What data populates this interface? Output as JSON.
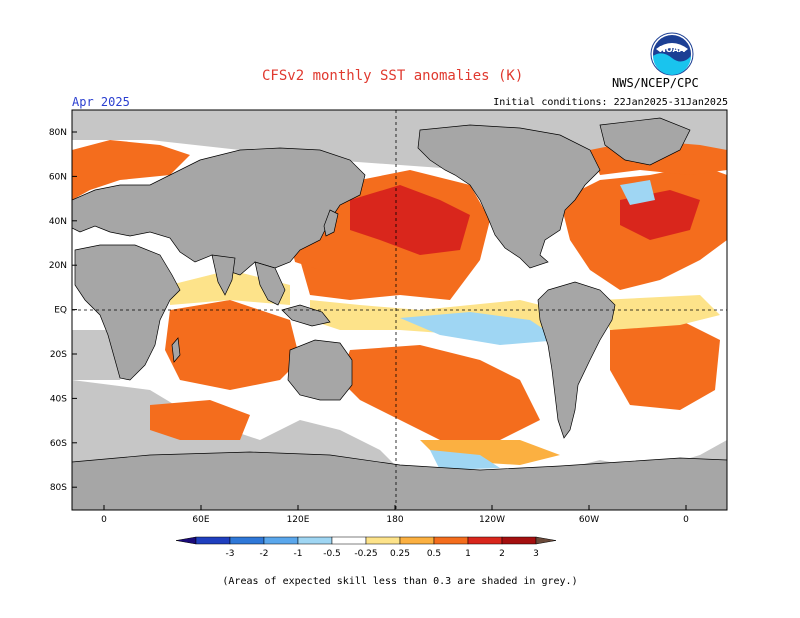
{
  "title": "CFSv2 monthly SST anomalies (K)",
  "month": "Apr 2025",
  "initial_conditions": "Initial conditions: 22Jan2025-31Jan2025",
  "agency": "NWS/NCEP/CPC",
  "logo_text": "NOAA",
  "footnote": "(Areas of expected skill less than 0.3 are shaded in grey.)",
  "map": {
    "lat_ticks": [
      "80N",
      "60N",
      "40N",
      "20N",
      "EQ",
      "20S",
      "40S",
      "60S",
      "80S"
    ],
    "lon_ticks": [
      "0",
      "60E",
      "120E",
      "180",
      "120W",
      "60W",
      "0"
    ],
    "reference_lines": [
      "equator",
      "date line"
    ]
  },
  "legend": {
    "labels": [
      "-3",
      "-2",
      "-1",
      "-0.5",
      "-0.25",
      "0.25",
      "0.5",
      "1",
      "2",
      "3"
    ],
    "colors": [
      "#1a0a7a",
      "#1f3fbf",
      "#2f78d8",
      "#5aa7ec",
      "#9fd6f3",
      "#ffffff",
      "#fde38a",
      "#fbb041",
      "#f46d1d",
      "#d9261c",
      "#a40f0f",
      "#6b4a3a"
    ]
  },
  "colors": {
    "land": "#a6a6a6",
    "low_skill": "#c6c6c6",
    "title": "#e0392f",
    "month": "#2b3fd0"
  }
}
